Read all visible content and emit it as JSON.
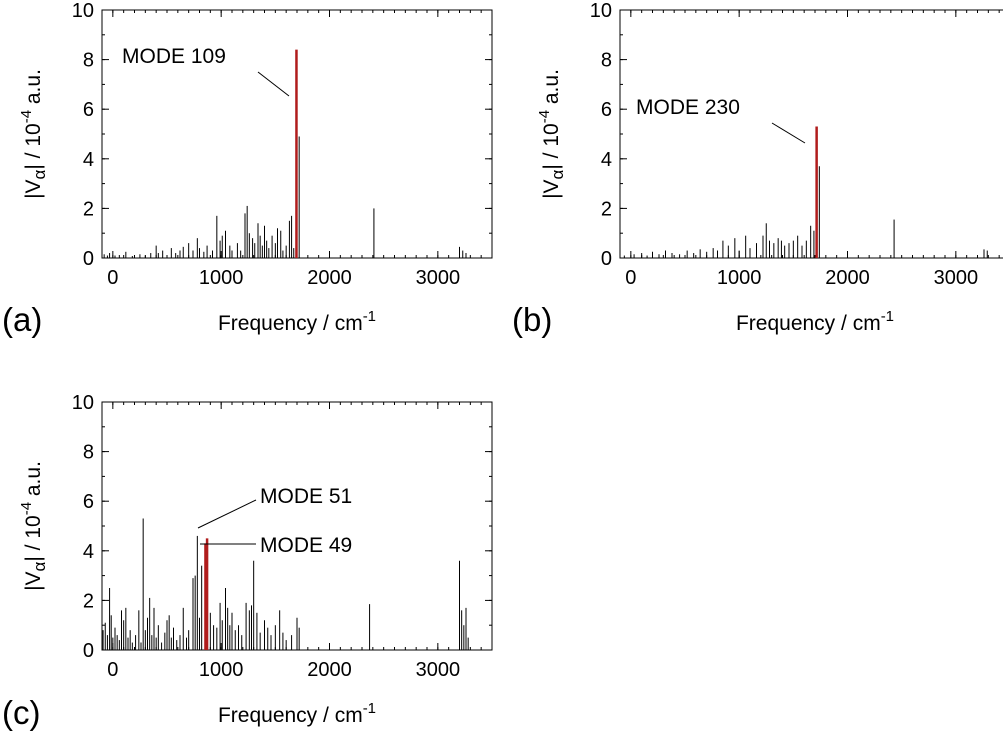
{
  "colors": {
    "highlight": "#b01c1c",
    "stick": "#000000",
    "frame": "#000000"
  },
  "chart_data": [
    {
      "type": "bar",
      "panel_label": "(a)",
      "xlabel": "Frequency / cm",
      "xlabel_sup": "-1",
      "ylabel_prefix": "|V",
      "ylabel_sub": "α",
      "ylabel_mid": "| / 10",
      "ylabel_sup": "-4",
      "ylabel_suffix": " a.u.",
      "xlim": [
        -100,
        3500
      ],
      "ylim": [
        0,
        10
      ],
      "xticks": [
        0,
        1000,
        2000,
        3000
      ],
      "yticks": [
        0,
        2,
        4,
        6,
        8,
        10
      ],
      "xtick_labels": [
        "0",
        "1000",
        "2000",
        "3000"
      ],
      "ytick_labels": [
        "0",
        "2",
        "4",
        "6",
        "8",
        "10"
      ],
      "grid": false,
      "legend": "none",
      "highlights": [
        {
          "label": "MODE 109",
          "x": 1695,
          "value": 8.4
        }
      ],
      "peaks": [
        [
          -80,
          0.15
        ],
        [
          -50,
          0.1
        ],
        [
          -30,
          0.2
        ],
        [
          20,
          0.1
        ],
        [
          60,
          0.12
        ],
        [
          120,
          0.25
        ],
        [
          180,
          0.08
        ],
        [
          250,
          0.15
        ],
        [
          300,
          0.1
        ],
        [
          350,
          0.2
        ],
        [
          400,
          0.5
        ],
        [
          420,
          0.2
        ],
        [
          460,
          0.3
        ],
        [
          500,
          0.1
        ],
        [
          540,
          0.4
        ],
        [
          580,
          0.2
        ],
        [
          620,
          0.3
        ],
        [
          650,
          0.45
        ],
        [
          700,
          0.6
        ],
        [
          740,
          0.3
        ],
        [
          780,
          0.8
        ],
        [
          800,
          0.4
        ],
        [
          840,
          0.25
        ],
        [
          870,
          0.5
        ],
        [
          920,
          0.3
        ],
        [
          960,
          1.7
        ],
        [
          990,
          0.7
        ],
        [
          1010,
          0.9
        ],
        [
          1040,
          1.1
        ],
        [
          1080,
          0.5
        ],
        [
          1100,
          0.3
        ],
        [
          1150,
          0.6
        ],
        [
          1180,
          0.3
        ],
        [
          1220,
          1.8
        ],
        [
          1240,
          2.1
        ],
        [
          1260,
          1.0
        ],
        [
          1290,
          0.8
        ],
        [
          1310,
          0.6
        ],
        [
          1340,
          1.4
        ],
        [
          1360,
          0.9
        ],
        [
          1380,
          0.5
        ],
        [
          1400,
          1.3
        ],
        [
          1420,
          0.7
        ],
        [
          1440,
          0.4
        ],
        [
          1470,
          0.9
        ],
        [
          1500,
          0.6
        ],
        [
          1520,
          1.2
        ],
        [
          1550,
          1.1
        ],
        [
          1570,
          0.3
        ],
        [
          1600,
          0.5
        ],
        [
          1630,
          1.5
        ],
        [
          1650,
          1.7
        ],
        [
          1670,
          0.4
        ],
        [
          1720,
          4.9
        ],
        [
          2410,
          2.0
        ],
        [
          3200,
          0.45
        ],
        [
          3230,
          0.3
        ],
        [
          3260,
          0.2
        ]
      ]
    },
    {
      "type": "bar",
      "panel_label": "(b)",
      "xlabel": "Frequency / cm",
      "xlabel_sup": "-1",
      "ylabel_prefix": "|V",
      "ylabel_sub": "α",
      "ylabel_mid": "| / 10",
      "ylabel_sup": "-4",
      "ylabel_suffix": " a.u.",
      "xlim": [
        -100,
        3500
      ],
      "ylim": [
        0,
        10
      ],
      "xticks": [
        0,
        1000,
        2000,
        3000
      ],
      "yticks": [
        0,
        2,
        4,
        6,
        8,
        10
      ],
      "xtick_labels": [
        "0",
        "1000",
        "2000",
        "3000"
      ],
      "ytick_labels": [
        "0",
        "2",
        "4",
        "6",
        "8",
        "10"
      ],
      "grid": false,
      "legend": "none",
      "highlights": [
        {
          "label": "MODE 230",
          "x": 1715,
          "value": 5.3
        }
      ],
      "peaks": [
        [
          -60,
          0.1
        ],
        [
          30,
          0.15
        ],
        [
          100,
          0.2
        ],
        [
          150,
          0.1
        ],
        [
          200,
          0.25
        ],
        [
          260,
          0.15
        ],
        [
          320,
          0.3
        ],
        [
          380,
          0.2
        ],
        [
          450,
          0.15
        ],
        [
          520,
          0.3
        ],
        [
          580,
          0.2
        ],
        [
          640,
          0.35
        ],
        [
          700,
          0.25
        ],
        [
          760,
          0.4
        ],
        [
          800,
          0.3
        ],
        [
          850,
          0.7
        ],
        [
          900,
          0.5
        ],
        [
          960,
          0.8
        ],
        [
          1000,
          0.3
        ],
        [
          1060,
          0.9
        ],
        [
          1100,
          0.4
        ],
        [
          1160,
          0.6
        ],
        [
          1220,
          0.9
        ],
        [
          1250,
          1.4
        ],
        [
          1280,
          0.7
        ],
        [
          1320,
          0.6
        ],
        [
          1360,
          0.8
        ],
        [
          1390,
          0.7
        ],
        [
          1420,
          0.5
        ],
        [
          1460,
          0.6
        ],
        [
          1500,
          0.7
        ],
        [
          1540,
          0.9
        ],
        [
          1580,
          0.5
        ],
        [
          1620,
          0.7
        ],
        [
          1660,
          1.3
        ],
        [
          1690,
          1.1
        ],
        [
          1740,
          3.7
        ],
        [
          2430,
          1.55
        ],
        [
          3260,
          0.35
        ],
        [
          3290,
          0.3
        ]
      ]
    },
    {
      "type": "bar",
      "panel_label": "(c)",
      "xlabel": "Frequency / cm",
      "xlabel_sup": "-1",
      "ylabel_prefix": "|V",
      "ylabel_sub": "α",
      "ylabel_mid": "| / 10",
      "ylabel_sup": "-4",
      "ylabel_suffix": " a.u.",
      "xlim": [
        -100,
        3500
      ],
      "ylim": [
        0,
        10
      ],
      "xticks": [
        0,
        1000,
        2000,
        3000
      ],
      "yticks": [
        0,
        2,
        4,
        6,
        8,
        10
      ],
      "xtick_labels": [
        "0",
        "1000",
        "2000",
        "3000"
      ],
      "ytick_labels": [
        "0",
        "2",
        "4",
        "6",
        "8",
        "10"
      ],
      "grid": false,
      "legend": "none",
      "highlights": [
        {
          "label": "MODE 51",
          "x": 870,
          "value": 4.5
        },
        {
          "label": "MODE 49",
          "x": 855,
          "value": 4.3
        }
      ],
      "peaks": [
        [
          -90,
          0.8
        ],
        [
          -70,
          1.1
        ],
        [
          -50,
          0.6
        ],
        [
          -30,
          2.5
        ],
        [
          -15,
          1.4
        ],
        [
          0,
          0.5
        ],
        [
          20,
          0.9
        ],
        [
          40,
          0.6
        ],
        [
          60,
          0.4
        ],
        [
          80,
          1.6
        ],
        [
          100,
          1.2
        ],
        [
          120,
          1.7
        ],
        [
          140,
          0.5
        ],
        [
          160,
          0.8
        ],
        [
          180,
          0.3
        ],
        [
          210,
          0.6
        ],
        [
          240,
          1.6
        ],
        [
          260,
          0.3
        ],
        [
          280,
          5.3
        ],
        [
          300,
          0.8
        ],
        [
          320,
          1.3
        ],
        [
          340,
          2.1
        ],
        [
          360,
          0.6
        ],
        [
          380,
          1.7
        ],
        [
          400,
          0.5
        ],
        [
          420,
          1.0
        ],
        [
          450,
          0.3
        ],
        [
          480,
          0.7
        ],
        [
          500,
          1.2
        ],
        [
          520,
          1.4
        ],
        [
          540,
          0.5
        ],
        [
          560,
          0.9
        ],
        [
          590,
          0.4
        ],
        [
          620,
          0.6
        ],
        [
          650,
          1.7
        ],
        [
          680,
          0.5
        ],
        [
          700,
          0.8
        ],
        [
          740,
          2.9
        ],
        [
          760,
          3.0
        ],
        [
          780,
          4.6
        ],
        [
          800,
          1.3
        ],
        [
          820,
          3.4
        ],
        [
          900,
          1.5
        ],
        [
          930,
          1.0
        ],
        [
          960,
          0.9
        ],
        [
          990,
          1.9
        ],
        [
          1010,
          1.2
        ],
        [
          1040,
          2.5
        ],
        [
          1060,
          1.7
        ],
        [
          1080,
          1.0
        ],
        [
          1100,
          1.5
        ],
        [
          1130,
          0.8
        ],
        [
          1160,
          1.0
        ],
        [
          1190,
          0.6
        ],
        [
          1230,
          1.9
        ],
        [
          1260,
          1.6
        ],
        [
          1280,
          1.8
        ],
        [
          1300,
          3.6
        ],
        [
          1330,
          1.5
        ],
        [
          1360,
          0.7
        ],
        [
          1400,
          1.2
        ],
        [
          1430,
          0.9
        ],
        [
          1460,
          0.6
        ],
        [
          1500,
          1.0
        ],
        [
          1540,
          1.6
        ],
        [
          1570,
          0.7
        ],
        [
          1600,
          0.4
        ],
        [
          1650,
          0.6
        ],
        [
          1700,
          1.3
        ],
        [
          1720,
          0.9
        ],
        [
          2370,
          1.85
        ],
        [
          3200,
          3.6
        ],
        [
          3220,
          1.6
        ],
        [
          3240,
          1.0
        ],
        [
          3260,
          1.7
        ],
        [
          3280,
          0.5
        ]
      ]
    }
  ]
}
